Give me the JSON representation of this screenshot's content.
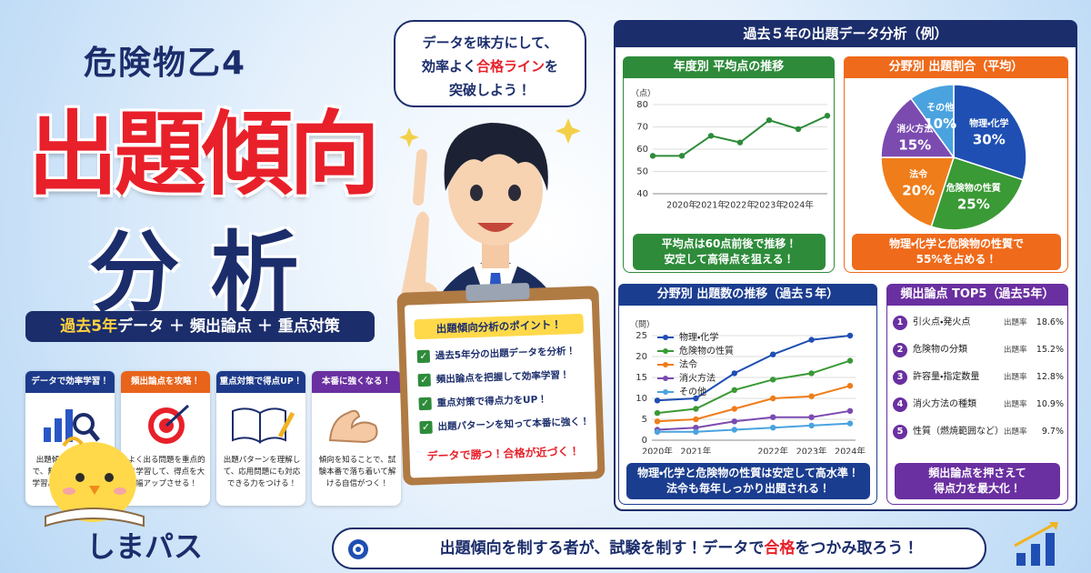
{
  "header": {
    "subtitle": "危険物乙4",
    "title": "出題傾向",
    "title_sub": "分析",
    "tagline": [
      {
        "text": "過去5年",
        "em": true
      },
      {
        "text": "データ ＋ 頻出論点 ＋ 重点対策",
        "em": false
      }
    ]
  },
  "speech": [
    [
      {
        "text": "データを味方にして、",
        "em": false
      }
    ],
    [
      {
        "text": "効率よく",
        "em": false
      },
      {
        "text": "合格ライン",
        "em": true
      },
      {
        "text": "を",
        "em": false
      }
    ],
    [
      {
        "text": "突破しよう！",
        "em": false
      }
    ]
  ],
  "features": [
    {
      "title": "データで効率学習！",
      "desc": "出題傾向を知ることで、無駄なく効率的に学習。短期間で合格を目指せる！",
      "color": "#1d3a8a"
    },
    {
      "title": "頻出論点を攻略！",
      "desc": "よく出る問題を重点的に学習して、得点を大幅アップさせる！",
      "color": "#e8641b"
    },
    {
      "title": "重点対策で得点UP！",
      "desc": "出題パターンを理解して、応用問題にも対応できる力をつける！",
      "color": "#1d3a8a"
    },
    {
      "title": "本番に強くなる！",
      "desc": "傾向を知ることで、試験本番で落ち着いて解ける自信がつく！",
      "color": "#6a2fa0"
    }
  ],
  "clipboard": {
    "title": "出題傾向分析のポイント！",
    "items": [
      "過去5年分の出題データを分析！",
      "頻出論点を把握して効率学習！",
      "重点対策で得点力をUP！",
      "出題パターンを知って本番に強く！"
    ],
    "footer": "データで勝つ！合格が近づく！"
  },
  "panel": {
    "title": "過去５年の出題データ分析（例）",
    "score_chart": {
      "type": "line",
      "title": "年度別 平均点の推移",
      "y_label": "（点）",
      "categories": [
        null,
        "2020年",
        "2021年",
        "2022年",
        "2023年",
        "2024年",
        null
      ],
      "values": [
        57,
        57,
        66,
        63,
        73,
        69,
        75
      ],
      "color": "#2e8b3a",
      "ylim": [
        40,
        80
      ],
      "yticks": [
        40,
        50,
        60,
        70,
        80
      ],
      "grid": true,
      "note": [
        "平均点は60点前後で推移！",
        "安定して高得点を狙える！"
      ]
    },
    "share_chart": {
      "type": "pie",
      "title": "分野別 出題割合（平均）",
      "categories": [
        "物理・化学",
        "危険物の性質",
        "法令",
        "消火方法",
        "その他"
      ],
      "values": [
        30,
        25,
        20,
        15,
        10
      ],
      "value_labels": [
        "30%",
        "25%",
        "20%",
        "15%",
        "10%"
      ],
      "colors": [
        "#1f4fb3",
        "#3a9a35",
        "#ef7d1a",
        "#7b4bb0",
        "#4aa3df"
      ],
      "note": [
        "物理・化学と危険物の性質で",
        "55%を占める！"
      ]
    },
    "count_chart": {
      "type": "line",
      "title": "分野別 出題数の推移（過去５年）",
      "y_label": "（問）",
      "categories": [
        "2020年",
        "2021年",
        null,
        "2022年",
        "2023年",
        "2024年"
      ],
      "series": [
        {
          "name": "物理・化学",
          "color": "#1f4fb3",
          "values": [
            9.5,
            10,
            16,
            20.5,
            24,
            25
          ]
        },
        {
          "name": "危険物の性質",
          "color": "#3a9a35",
          "values": [
            6.5,
            7.5,
            12,
            14.5,
            16,
            19
          ]
        },
        {
          "name": "法令",
          "color": "#ef7d1a",
          "values": [
            4.5,
            5,
            7.5,
            10,
            10.5,
            13
          ]
        },
        {
          "name": "消火方法",
          "color": "#7b4bb0",
          "values": [
            2.5,
            3,
            4.5,
            5.5,
            5.5,
            7
          ]
        },
        {
          "name": "その他",
          "color": "#4aa3df",
          "values": [
            2,
            2,
            2.5,
            3,
            3.5,
            4
          ]
        }
      ],
      "ylim": [
        0,
        25
      ],
      "yticks": [
        0,
        5,
        10,
        15,
        20,
        25
      ],
      "grid": true,
      "note": [
        "物理・化学と危険物の性質は安定して高水準！",
        "法令も毎年しっかり出題される！"
      ]
    },
    "top5": {
      "title": "頻出論点 TOP5（過去5年）",
      "rate_heading": "出題率",
      "items": [
        {
          "rank": 1,
          "name": "引火点・発火点",
          "rate": "18.6%"
        },
        {
          "rank": 2,
          "name": "危険物の分類",
          "rate": "15.2%"
        },
        {
          "rank": 3,
          "name": "許容量・指定数量",
          "rate": "12.8%"
        },
        {
          "rank": 4,
          "name": "消火方法の種類",
          "rate": "10.9%"
        },
        {
          "rank": 5,
          "name": "性質（燃焼範囲など）",
          "rate": "9.7%"
        }
      ],
      "note": [
        "頻出論点を押さえて",
        "得点力を最大化！"
      ]
    }
  },
  "brand": "しまパス",
  "footer": [
    {
      "text": "出題傾向を制する者が、試験を制す！データで",
      "em": false
    },
    {
      "text": "合格",
      "em": true
    },
    {
      "text": "をつかみ取ろう！",
      "em": false
    }
  ]
}
